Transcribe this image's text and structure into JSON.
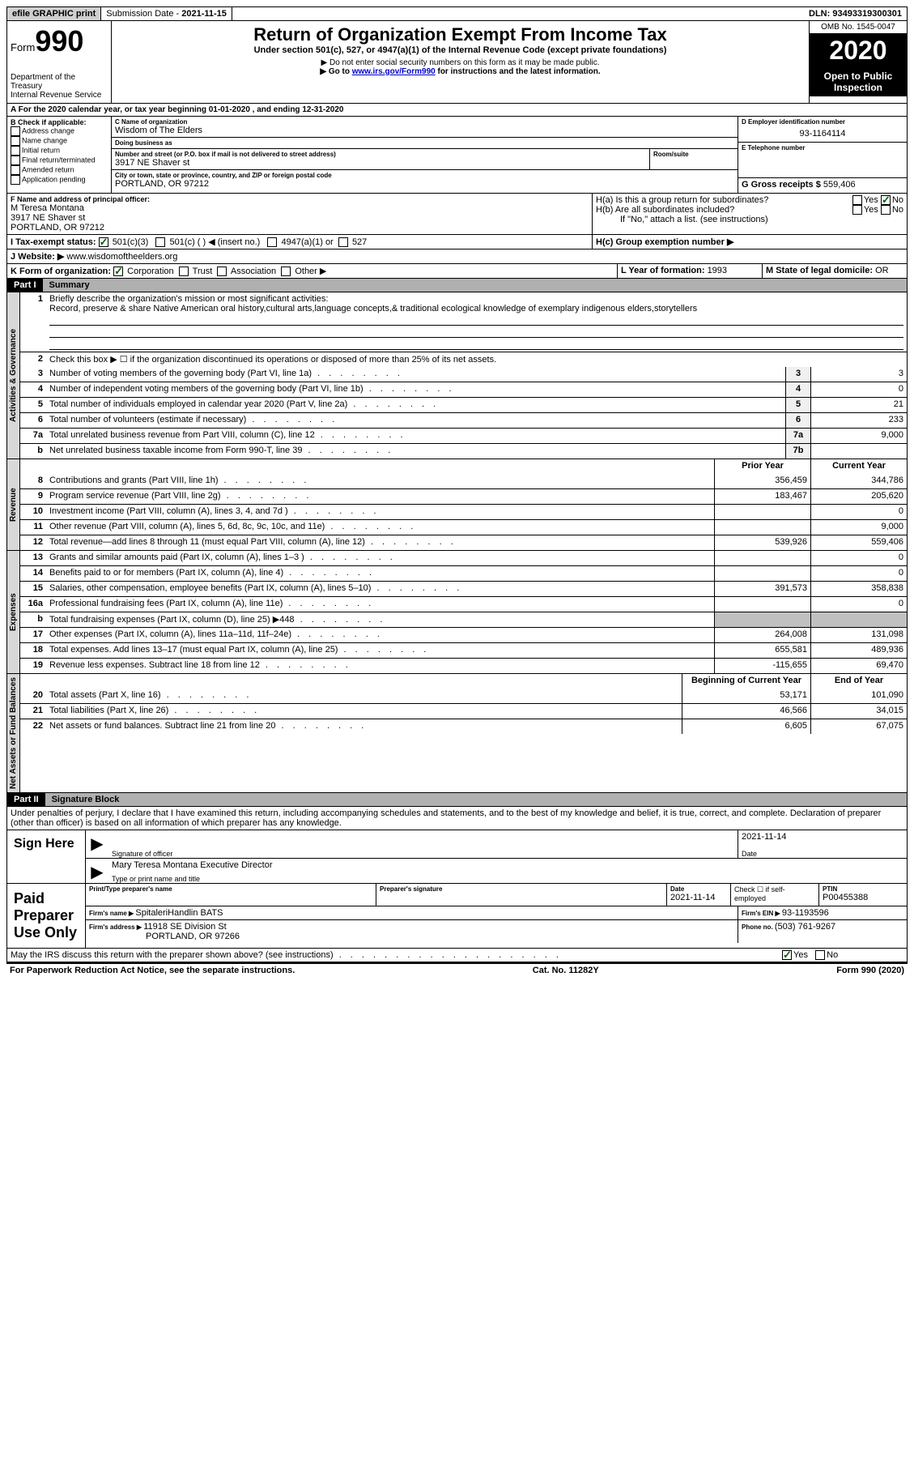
{
  "topbar": {
    "efile": "efile GRAPHIC print",
    "submission_label": "Submission Date - ",
    "submission_date": "2021-11-15",
    "dln_label": "DLN: ",
    "dln": "93493319300301"
  },
  "header": {
    "form_label": "Form",
    "form_number": "990",
    "dept1": "Department of the Treasury",
    "dept2": "Internal Revenue Service",
    "title": "Return of Organization Exempt From Income Tax",
    "subtitle": "Under section 501(c), 527, or 4947(a)(1) of the Internal Revenue Code (except private foundations)",
    "note1": "▶ Do not enter social security numbers on this form as it may be made public.",
    "note2_pre": "▶ Go to ",
    "note2_link": "www.irs.gov/Form990",
    "note2_post": " for instructions and the latest information.",
    "omb": "OMB No. 1545-0047",
    "year": "2020",
    "inspection": "Open to Public Inspection"
  },
  "section_a": "A For the 2020 calendar year, or tax year beginning 01-01-2020   , and ending 12-31-2020",
  "section_b": {
    "header": "B Check if applicable:",
    "items": [
      "Address change",
      "Name change",
      "Initial return",
      "Final return/terminated",
      "Amended return",
      "Application pending"
    ]
  },
  "section_c": {
    "name_label": "C Name of organization",
    "name": "Wisdom of The Elders",
    "dba_label": "Doing business as",
    "dba": "",
    "street_label": "Number and street (or P.O. box if mail is not delivered to street address)",
    "street": "3917 NE Shaver st",
    "room_label": "Room/suite",
    "room": "",
    "city_label": "City or town, state or province, country, and ZIP or foreign postal code",
    "city": "PORTLAND, OR  97212"
  },
  "section_d": {
    "label": "D Employer identification number",
    "ein": "93-1164114",
    "phone_label": "E Telephone number",
    "phone": "",
    "gross_label": "G Gross receipts $ ",
    "gross": "559,406"
  },
  "section_f": {
    "label": "F  Name and address of principal officer:",
    "name": "M Teresa Montana",
    "street": "3917 NE Shaver st",
    "city": "PORTLAND, OR  97212"
  },
  "section_h": {
    "ha_label": "H(a)  Is this a group return for subordinates?",
    "hb_label": "H(b)  Are all subordinates included?",
    "hb_note": "If \"No,\" attach a list. (see instructions)",
    "hc_label": "H(c)  Group exemption number ▶",
    "yes": "Yes",
    "no": "No"
  },
  "section_i": {
    "label": "I    Tax-exempt status:",
    "opt1": "501(c)(3)",
    "opt2": "501(c) (   ) ◀ (insert no.)",
    "opt3": "4947(a)(1) or",
    "opt4": "527"
  },
  "section_j": {
    "label": "J   Website: ▶ ",
    "value": " www.wisdomoftheelders.org"
  },
  "section_k": {
    "label": "K Form of organization:",
    "opts": [
      "Corporation",
      "Trust",
      "Association",
      "Other ▶"
    ]
  },
  "section_l": {
    "label": "L Year of formation: ",
    "value": "1993"
  },
  "section_m": {
    "label": "M State of legal domicile: ",
    "value": "OR"
  },
  "part1": {
    "header": "Part I",
    "title": "Summary",
    "q1_label": "Briefly describe the organization's mission or most significant activities:",
    "q1_text": "Record, preserve & share Native American oral history,cultural arts,language concepts,& traditional ecological knowledge of exemplary indigenous elders,storytellers",
    "q2": "Check this box ▶ ☐  if the organization discontinued its operations or disposed of more than 25% of its net assets.",
    "side_gov": "Activities & Governance",
    "side_rev": "Revenue",
    "side_exp": "Expenses",
    "side_net": "Net Assets or Fund Balances",
    "prior_year": "Prior Year",
    "current_year": "Current Year",
    "beg_year": "Beginning of Current Year",
    "end_year": "End of Year",
    "lines_gov": [
      {
        "n": "3",
        "t": "Number of voting members of the governing body (Part VI, line 1a)",
        "box": "3",
        "v": "3"
      },
      {
        "n": "4",
        "t": "Number of independent voting members of the governing body (Part VI, line 1b)",
        "box": "4",
        "v": "0"
      },
      {
        "n": "5",
        "t": "Total number of individuals employed in calendar year 2020 (Part V, line 2a)",
        "box": "5",
        "v": "21"
      },
      {
        "n": "6",
        "t": "Total number of volunteers (estimate if necessary)",
        "box": "6",
        "v": "233"
      },
      {
        "n": "7a",
        "t": "Total unrelated business revenue from Part VIII, column (C), line 12",
        "box": "7a",
        "v": "9,000"
      },
      {
        "n": "b",
        "t": "Net unrelated business taxable income from Form 990-T, line 39",
        "box": "7b",
        "v": ""
      }
    ],
    "lines_rev": [
      {
        "n": "8",
        "t": "Contributions and grants (Part VIII, line 1h)",
        "p": "356,459",
        "c": "344,786"
      },
      {
        "n": "9",
        "t": "Program service revenue (Part VIII, line 2g)",
        "p": "183,467",
        "c": "205,620"
      },
      {
        "n": "10",
        "t": "Investment income (Part VIII, column (A), lines 3, 4, and 7d )",
        "p": "",
        "c": "0"
      },
      {
        "n": "11",
        "t": "Other revenue (Part VIII, column (A), lines 5, 6d, 8c, 9c, 10c, and 11e)",
        "p": "",
        "c": "9,000"
      },
      {
        "n": "12",
        "t": "Total revenue—add lines 8 through 11 (must equal Part VIII, column (A), line 12)",
        "p": "539,926",
        "c": "559,406"
      }
    ],
    "lines_exp": [
      {
        "n": "13",
        "t": "Grants and similar amounts paid (Part IX, column (A), lines 1–3 )",
        "p": "",
        "c": "0"
      },
      {
        "n": "14",
        "t": "Benefits paid to or for members (Part IX, column (A), line 4)",
        "p": "",
        "c": "0"
      },
      {
        "n": "15",
        "t": "Salaries, other compensation, employee benefits (Part IX, column (A), lines 5–10)",
        "p": "391,573",
        "c": "358,838"
      },
      {
        "n": "16a",
        "t": "Professional fundraising fees (Part IX, column (A), line 11e)",
        "p": "",
        "c": "0"
      },
      {
        "n": "b",
        "t": "Total fundraising expenses (Part IX, column (D), line 25) ▶448",
        "p": "",
        "c": "",
        "shaded": true
      },
      {
        "n": "17",
        "t": "Other expenses (Part IX, column (A), lines 11a–11d, 11f–24e)",
        "p": "264,008",
        "c": "131,098"
      },
      {
        "n": "18",
        "t": "Total expenses. Add lines 13–17 (must equal Part IX, column (A), line 25)",
        "p": "655,581",
        "c": "489,936"
      },
      {
        "n": "19",
        "t": "Revenue less expenses. Subtract line 18 from line 12",
        "p": "-115,655",
        "c": "69,470"
      }
    ],
    "lines_net": [
      {
        "n": "20",
        "t": "Total assets (Part X, line 16)",
        "p": "53,171",
        "c": "101,090"
      },
      {
        "n": "21",
        "t": "Total liabilities (Part X, line 26)",
        "p": "46,566",
        "c": "34,015"
      },
      {
        "n": "22",
        "t": "Net assets or fund balances. Subtract line 21 from line 20",
        "p": "6,605",
        "c": "67,075"
      }
    ]
  },
  "part2": {
    "header": "Part II",
    "title": "Signature Block",
    "penalty": "Under penalties of perjury, I declare that I have examined this return, including accompanying schedules and statements, and to the best of my knowledge and belief, it is true, correct, and complete. Declaration of preparer (other than officer) is based on all information of which preparer has any knowledge."
  },
  "sign": {
    "label": "Sign Here",
    "sig_label": "Signature of officer",
    "date_label": "Date",
    "date": "2021-11-14",
    "name": "Mary Teresa Montana  Executive Director",
    "name_label": "Type or print name and title"
  },
  "preparer": {
    "label": "Paid Preparer Use Only",
    "name_label": "Print/Type preparer's name",
    "sig_label": "Preparer's signature",
    "date_label": "Date",
    "date": "2021-11-14",
    "check_label": "Check ☐ if self-employed",
    "ptin_label": "PTIN",
    "ptin": "P00455388",
    "firm_name_label": "Firm's name   ▶ ",
    "firm_name": "SpitaleriHandlin BATS",
    "firm_ein_label": "Firm's EIN ▶ ",
    "firm_ein": "93-1193596",
    "firm_addr_label": "Firm's address ▶ ",
    "firm_addr": "11918 SE Division St",
    "firm_city": "PORTLAND, OR  97266",
    "phone_label": "Phone no. ",
    "phone": "(503) 761-9267"
  },
  "discuss": {
    "text": "May the IRS discuss this return with the preparer shown above? (see instructions)",
    "yes": "Yes",
    "no": "No"
  },
  "footer": {
    "left": "For Paperwork Reduction Act Notice, see the separate instructions.",
    "mid": "Cat. No. 11282Y",
    "right_pre": "Form ",
    "right_bold": "990",
    "right_post": " (2020)"
  }
}
